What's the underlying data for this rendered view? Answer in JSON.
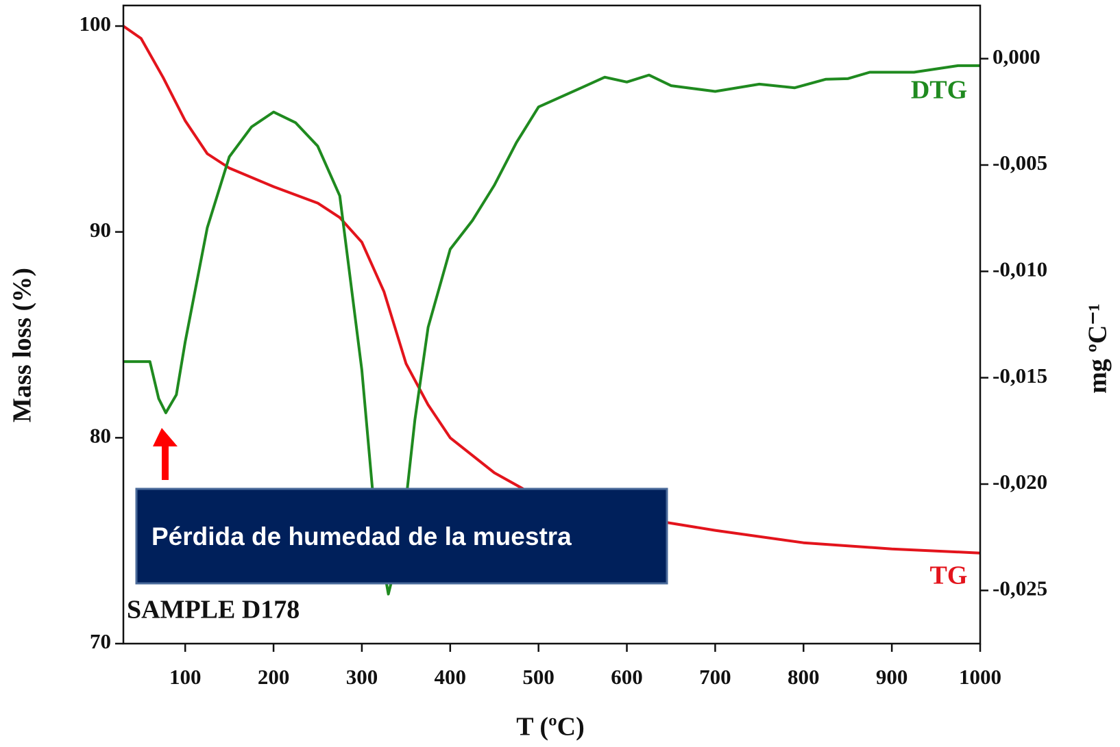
{
  "chart_data": {
    "type": "line",
    "xlabel": "T (ºC)",
    "ylabel": "Mass loss (%)",
    "y2label": "mg ºC⁻¹",
    "annotations": [
      "SAMPLE D178",
      "Pérdida de humedad de la muestra"
    ],
    "xlim": [
      30,
      1000
    ],
    "xticks": [
      100,
      200,
      300,
      400,
      500,
      600,
      700,
      800,
      900,
      1000
    ],
    "ylim": [
      70,
      101
    ],
    "yticks": [
      70,
      80,
      90,
      100
    ],
    "y2lim": [
      -0.0275,
      0.0025
    ],
    "y2ticks": [
      {
        "value": 0,
        "label": "0,000"
      },
      {
        "value": -0.005,
        "label": "-0,005"
      },
      {
        "value": -0.01,
        "label": "-0,010"
      },
      {
        "value": -0.015,
        "label": "-0,015"
      },
      {
        "value": -0.02,
        "label": "-0,020"
      },
      {
        "value": -0.025,
        "label": "-0,025"
      }
    ],
    "series": [
      {
        "name": "TG",
        "color": "#e3141c",
        "x": [
          30,
          50,
          75,
          100,
          125,
          150,
          200,
          250,
          275,
          300,
          325,
          350,
          375,
          400,
          450,
          500,
          600,
          700,
          800,
          900,
          1000
        ],
        "values": [
          100,
          99.4,
          97.5,
          95.4,
          93.8,
          93.1,
          92.2,
          91.4,
          90.7,
          89.5,
          87.1,
          83.6,
          81.6,
          80.0,
          78.3,
          77.1,
          76.2,
          75.5,
          74.9,
          74.6,
          74.4
        ]
      },
      {
        "name": "DTG",
        "color": "#1f8a1f",
        "axis": "y2",
        "x": [
          30,
          60,
          70,
          78,
          90,
          100,
          125,
          150,
          175,
          200,
          225,
          250,
          275,
          300,
          315,
          330,
          345,
          360,
          375,
          400,
          425,
          450,
          475,
          500,
          550,
          575,
          600,
          625,
          650,
          700,
          750,
          790,
          825,
          850,
          875,
          925,
          975,
          1000
        ],
        "values": [
          -0.01424,
          -0.01424,
          -0.01598,
          -0.01665,
          -0.0158,
          -0.01331,
          -0.00795,
          -0.00461,
          -0.00321,
          -0.00251,
          -0.00301,
          -0.00411,
          -0.00645,
          -0.01464,
          -0.02166,
          -0.02517,
          -0.02266,
          -0.01698,
          -0.01263,
          -0.00896,
          -0.00762,
          -0.00595,
          -0.00394,
          -0.00227,
          -0.00134,
          -0.00087,
          -0.0011,
          -0.00077,
          -0.00127,
          -0.00154,
          -0.0012,
          -0.00137,
          -0.00097,
          -0.00094,
          -0.00064,
          -0.00064,
          -0.00033,
          -0.00033
        ]
      }
    ]
  }
}
